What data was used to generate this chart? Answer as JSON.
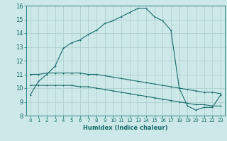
{
  "xlabel": "Humidex (Indice chaleur)",
  "background_color": "#cce8e8",
  "grid_color": "#b0d0d0",
  "line_color": "#1a6b6b",
  "spine_color": "#2a8080",
  "xlim": [
    -0.5,
    23.5
  ],
  "ylim": [
    8,
    16
  ],
  "xticks": [
    0,
    1,
    2,
    3,
    4,
    5,
    6,
    7,
    8,
    9,
    10,
    11,
    12,
    13,
    14,
    15,
    16,
    17,
    18,
    19,
    20,
    21,
    22,
    23
  ],
  "yticks": [
    8,
    9,
    10,
    11,
    12,
    13,
    14,
    15,
    16
  ],
  "main_x": [
    0,
    1,
    2,
    3,
    4,
    5,
    6,
    7,
    8,
    9,
    10,
    11,
    12,
    13,
    14,
    15,
    16,
    17,
    18,
    19,
    20,
    21,
    22,
    23
  ],
  "main_y": [
    9.5,
    10.5,
    11.0,
    11.6,
    12.9,
    13.3,
    13.5,
    13.9,
    14.2,
    14.7,
    14.9,
    15.2,
    15.5,
    15.8,
    15.8,
    15.2,
    14.9,
    14.2,
    10.0,
    8.7,
    8.4,
    8.6,
    8.6,
    9.5
  ],
  "flat1_x": [
    0,
    1,
    2,
    3,
    4,
    5,
    6,
    7,
    8,
    9,
    10,
    11,
    12,
    13,
    14,
    15,
    16,
    17,
    18,
    19,
    20,
    21,
    22,
    23
  ],
  "flat1_y": [
    11.0,
    11.0,
    11.1,
    11.1,
    11.1,
    11.1,
    11.1,
    11.0,
    11.0,
    10.9,
    10.8,
    10.7,
    10.6,
    10.5,
    10.4,
    10.3,
    10.2,
    10.1,
    10.0,
    9.9,
    9.8,
    9.7,
    9.7,
    9.6
  ],
  "flat2_x": [
    0,
    1,
    2,
    3,
    4,
    5,
    6,
    7,
    8,
    9,
    10,
    11,
    12,
    13,
    14,
    15,
    16,
    17,
    18,
    19,
    20,
    21,
    22,
    23
  ],
  "flat2_y": [
    10.2,
    10.2,
    10.2,
    10.2,
    10.2,
    10.2,
    10.1,
    10.1,
    10.0,
    9.9,
    9.8,
    9.7,
    9.6,
    9.5,
    9.4,
    9.3,
    9.2,
    9.1,
    9.0,
    8.9,
    8.8,
    8.8,
    8.7,
    8.7
  ]
}
